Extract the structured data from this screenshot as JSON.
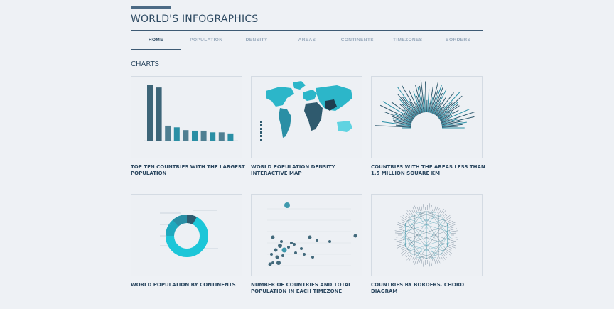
{
  "site": {
    "title": "WORLD'S INFOGRAPHICS"
  },
  "nav": {
    "items": [
      {
        "label": "HOME",
        "active": true
      },
      {
        "label": "POPULATION"
      },
      {
        "label": "DENSITY"
      },
      {
        "label": "AREAS"
      },
      {
        "label": "CONTINENTS"
      },
      {
        "label": "TIMEZONES"
      },
      {
        "label": "BORDERS"
      }
    ]
  },
  "section": {
    "title": "CHARTS"
  },
  "cards": [
    {
      "caption": "TOP TEN COUNTRIES WITH THE LARGEST POPULATION"
    },
    {
      "caption": "WORLD POPULATION DENSITY INTERACTIVE MAP"
    },
    {
      "caption": "COUNTRIES WITH THE AREAS LESS THAN 1.5 MILLION SQUARE KM"
    },
    {
      "caption": "WORLD POPULATION BY CONTINENTS"
    },
    {
      "caption": "NUMBER OF COUNTRIES AND TOTAL POPULATION IN EACH TIMEZONE"
    },
    {
      "caption": "COUNTRIES BY BORDERS. CHORD DIAGRAM"
    }
  ],
  "colors": {
    "dark": "#2f5a6e",
    "mid": "#2a8fa5",
    "accent": "#1cc6d8",
    "text": "#2e4a62"
  },
  "thumbnail_data": {
    "bar_values": [
      100,
      96,
      27,
      24,
      19,
      18,
      18,
      15,
      15,
      13
    ]
  }
}
